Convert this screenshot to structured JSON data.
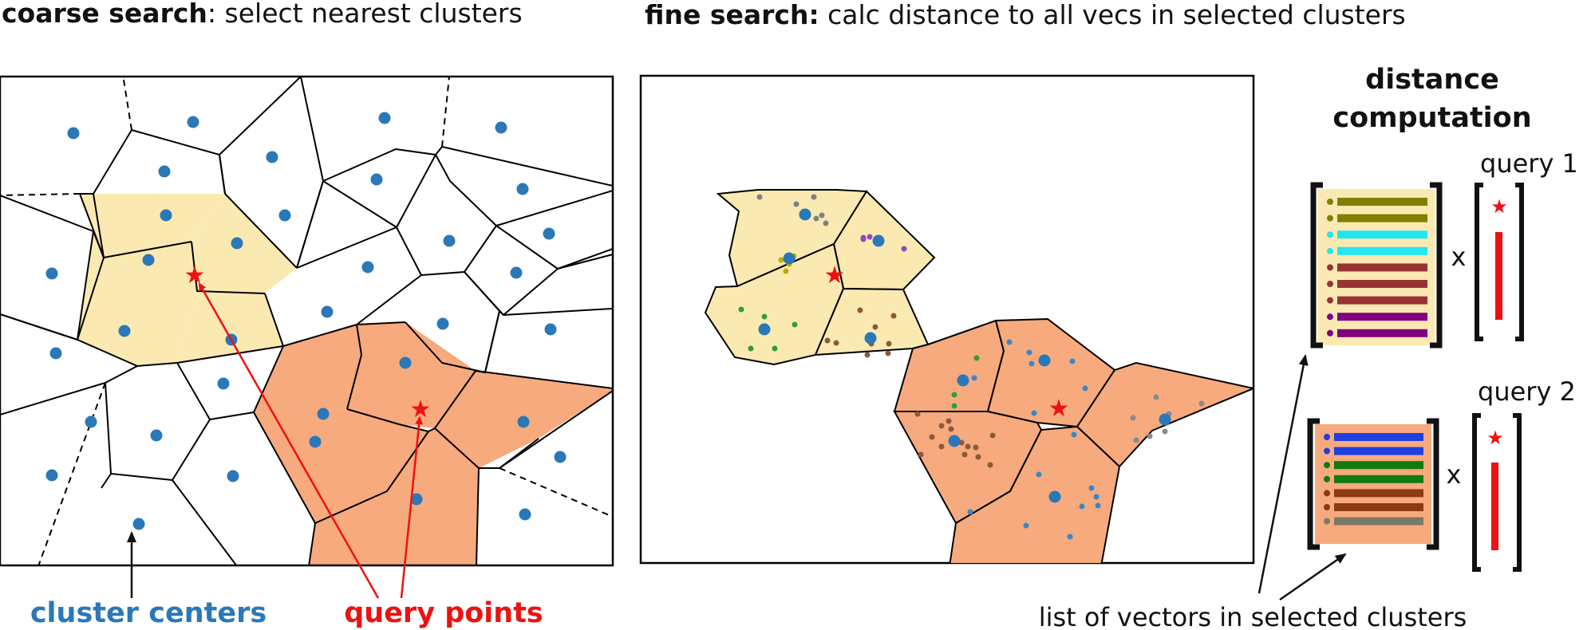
{
  "coarse": {
    "title_bold": "coarse search",
    "title_rest": ": select nearest clusters"
  },
  "fine": {
    "title_bold": "fine search:",
    "title_rest": " calc distance to all vecs in selected clusters"
  },
  "distance": {
    "title_line1": "distance",
    "title_line2": "computation",
    "query1": "query 1",
    "query2": "query 2",
    "multiply": "x"
  },
  "labels": {
    "cluster_centers": "cluster centers",
    "query_points": "query points",
    "list_of_vectors": "list of vectors in selected clusters"
  },
  "colors": {
    "center": "#2a78b8",
    "query": "#ee1111",
    "yellow_region": "#fbe9b2",
    "orange_region": "#f6aa7d",
    "olive": "#808000",
    "cyan": "#22e6f0",
    "brown": "#993333",
    "purple": "#800080",
    "blue": "#1f3fe0",
    "green": "#117a11",
    "darkbrown": "#8b3a12",
    "gray": "#7a7a68"
  },
  "matrix1_rows": [
    "olive",
    "olive",
    "cyan",
    "cyan",
    "brown",
    "brown",
    "brown",
    "purple",
    "purple"
  ],
  "matrix2_rows": [
    "blue",
    "blue",
    "green",
    "green",
    "darkbrown",
    "darkbrown",
    "gray"
  ]
}
